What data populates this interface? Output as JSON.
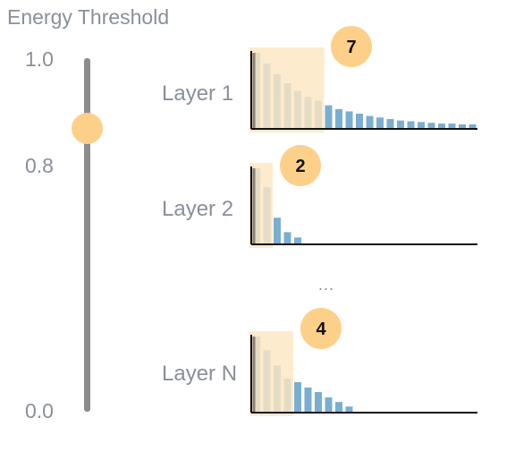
{
  "title": "Energy Threshold",
  "slider": {
    "ticks": [
      {
        "label": "1.0",
        "value": 1.0
      },
      {
        "label": "0.8",
        "value": 0.8
      },
      {
        "label": "0.0",
        "value": 0.0
      }
    ],
    "value": 0.8
  },
  "ellipsis": "...",
  "colors": {
    "bar": "#7aaed0",
    "highlight": "#fde6c2",
    "badge": "#fdd08a",
    "axis": "#111111",
    "first_bar": "#8a7f72",
    "track": "#8c8c8c"
  },
  "layers": [
    {
      "label": "Layer 1",
      "selected_count": "7",
      "values": [
        1.0,
        0.86,
        0.72,
        0.6,
        0.5,
        0.42,
        0.37,
        0.31,
        0.26,
        0.23,
        0.2,
        0.17,
        0.15,
        0.13,
        0.11,
        0.1,
        0.09,
        0.08,
        0.07,
        0.07,
        0.06,
        0.06
      ]
    },
    {
      "label": "Layer 2",
      "selected_count": "2",
      "values": [
        1.0,
        0.75,
        0.35,
        0.16,
        0.09
      ]
    },
    {
      "label": "Layer N",
      "selected_count": "4",
      "values": [
        1.0,
        0.82,
        0.62,
        0.45,
        0.4,
        0.33,
        0.27,
        0.2,
        0.14,
        0.08
      ]
    }
  ]
}
